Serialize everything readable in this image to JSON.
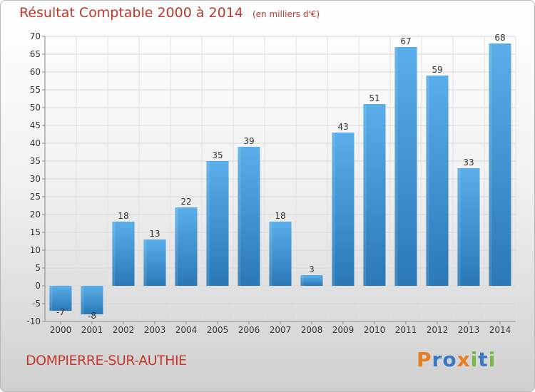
{
  "title": "Résultat Comptable 2000 à 2014",
  "subtitle": "(en milliers d'€)",
  "commune": "DOMPIERRE-SUR-AUTHIE",
  "logo": {
    "letters": [
      "P",
      "r",
      "o",
      "x",
      "i",
      "t",
      "i"
    ],
    "colors": [
      "#e67e22",
      "#3a78c3",
      "#3a78c3",
      "#e67e22",
      "#7ab648",
      "#3a78c3",
      "#7ab648"
    ]
  },
  "colors": {
    "bar_top": "#5aaee9",
    "bar_bottom": "#2a78b6",
    "title": "#c0392b"
  },
  "chart_data": {
    "type": "bar",
    "title": "Résultat Comptable 2000 à 2014",
    "ylabel": "en milliers d'€",
    "xlabel": "",
    "categories": [
      "2000",
      "2001",
      "2002",
      "2003",
      "2004",
      "2005",
      "2006",
      "2007",
      "2008",
      "2009",
      "2010",
      "2011",
      "2012",
      "2013",
      "2014"
    ],
    "values": [
      -7,
      -8,
      18,
      13,
      22,
      35,
      39,
      18,
      3,
      43,
      51,
      67,
      59,
      33,
      68
    ],
    "ylim": [
      -10,
      70
    ],
    "yticks": [
      -10,
      -5,
      0,
      5,
      10,
      15,
      20,
      25,
      30,
      35,
      40,
      45,
      50,
      55,
      60,
      65,
      70
    ],
    "grid": true,
    "legend": "none"
  }
}
